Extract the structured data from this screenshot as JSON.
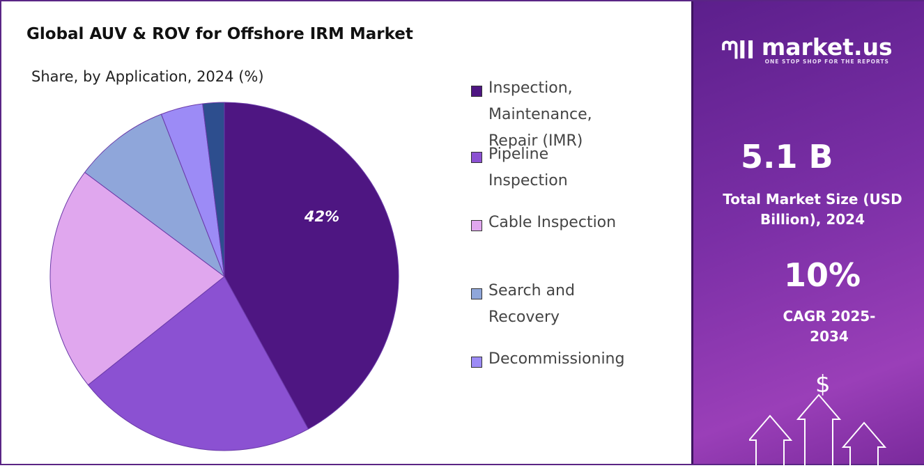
{
  "title": "Global AUV & ROV for Offshore IRM Market",
  "subtitle": "Share, by Application, 2024 (%)",
  "chart_data": {
    "type": "pie",
    "categories": [
      "Inspection, Maintenance, Repair (IMR)",
      "Pipeline Inspection",
      "Cable Inspection",
      "Search and Recovery",
      "Decommissioning",
      ""
    ],
    "values": [
      42,
      22.3,
      20.9,
      8.9,
      3.9,
      2.0
    ],
    "colors": [
      "#4e1682",
      "#8b51d2",
      "#e0a7ee",
      "#8fa6da",
      "#9c8bf6",
      "#2d4e8e"
    ],
    "data_labels": [
      "42%",
      "",
      "",
      "",
      "",
      ""
    ],
    "legend_position": "right"
  },
  "legend": [
    "Inspection, Maintenance, Repair (IMR)",
    "Pipeline Inspection",
    "Cable Inspection",
    "Search and Recovery",
    "Decommissioning"
  ],
  "panel": {
    "brand": "market.us",
    "tagline": "ONE STOP SHOP FOR THE REPORTS",
    "market_size": "5.1 B",
    "market_size_label": "Total Market Size (USD Billion), 2024",
    "cagr": "10%",
    "cagr_label": "CAGR 2025-2034",
    "currency_symbol": "$"
  }
}
